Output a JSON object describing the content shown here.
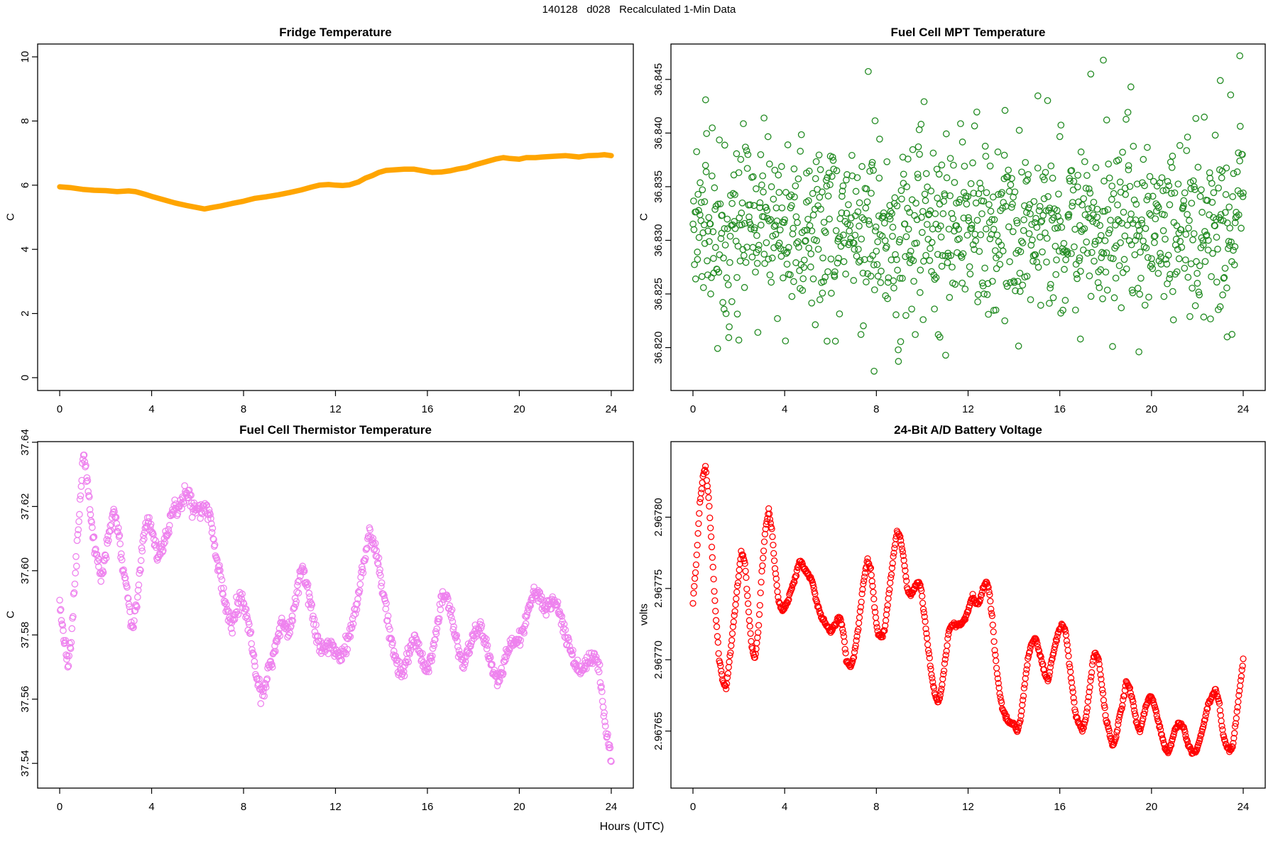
{
  "figure": {
    "title": "140128   d028   Recalculated 1-Min Data",
    "xlabel": "Hours (UTC)",
    "background": "#ffffff",
    "text_color": "#000000"
  },
  "chart_data": [
    {
      "type": "line",
      "title": "Fridge Temperature",
      "ylabel": "C",
      "color": "#FFA500",
      "line_width": 7.5,
      "xlim": [
        -0.96,
        24.96
      ],
      "ylim": [
        -0.4,
        10.4
      ],
      "xtick_values": [
        0,
        4,
        8,
        12,
        16,
        20,
        24
      ],
      "xtick_labels": [
        "0",
        "4",
        "8",
        "12",
        "16",
        "20",
        "24"
      ],
      "ytick_values": [
        0,
        2,
        4,
        6,
        8,
        10
      ],
      "ytick_labels": [
        "0",
        "2",
        "4",
        "6",
        "8",
        "10"
      ],
      "anchors": {
        "x": [
          0,
          0.5,
          1,
          1.5,
          2,
          2.5,
          3,
          3.3,
          3.7,
          4,
          4.5,
          5,
          5.5,
          6,
          6.3,
          6.6,
          7,
          7.5,
          8,
          8.5,
          9,
          9.5,
          10,
          10.5,
          11,
          11.3,
          11.7,
          12,
          12.3,
          12.6,
          13,
          13.3,
          13.6,
          13.9,
          14.2,
          14.6,
          15,
          15.4,
          15.8,
          16.2,
          16.6,
          17,
          17.3,
          17.7,
          18,
          18.5,
          19,
          19.3,
          19.6,
          20,
          20.3,
          20.7,
          21,
          21.5,
          22,
          22.3,
          22.6,
          23,
          23.4,
          23.7,
          24
        ],
        "y": [
          5.95,
          5.92,
          5.87,
          5.84,
          5.83,
          5.8,
          5.82,
          5.8,
          5.72,
          5.65,
          5.55,
          5.45,
          5.37,
          5.3,
          5.26,
          5.3,
          5.35,
          5.43,
          5.5,
          5.59,
          5.64,
          5.7,
          5.77,
          5.85,
          5.95,
          6.0,
          6.02,
          6.0,
          5.99,
          6.01,
          6.1,
          6.22,
          6.3,
          6.4,
          6.46,
          6.48,
          6.5,
          6.5,
          6.45,
          6.4,
          6.41,
          6.45,
          6.5,
          6.55,
          6.62,
          6.72,
          6.82,
          6.86,
          6.83,
          6.81,
          6.86,
          6.86,
          6.88,
          6.9,
          6.92,
          6.9,
          6.88,
          6.92,
          6.93,
          6.95,
          6.92
        ]
      }
    },
    {
      "type": "scatter-cloud",
      "title": "Fuel Cell MPT Temperature",
      "ylabel": "C",
      "color": "#228B22",
      "marker_radius": 4.2,
      "marker_stroke_width": 1.3,
      "xlim": [
        -0.96,
        24.96
      ],
      "ylim": [
        36.816,
        36.8483
      ],
      "xtick_values": [
        0,
        4,
        8,
        12,
        16,
        20,
        24
      ],
      "xtick_labels": [
        "0",
        "4",
        "8",
        "12",
        "16",
        "20",
        "24"
      ],
      "ytick_values": [
        36.82,
        36.825,
        36.83,
        36.835,
        36.84,
        36.845
      ],
      "ytick_labels": [
        "36.820",
        "36.825",
        "36.830",
        "36.835",
        "36.840",
        "36.845"
      ],
      "cloud": {
        "count": 1050,
        "seed": 20140128,
        "y_mean": 36.8311,
        "y_sd": 0.0042,
        "y_min": 36.8172,
        "y_max": 36.8472,
        "late_start": 21,
        "late_mean_slope": 0.00035,
        "late_sd_slope": 0.0003
      },
      "outliers": [
        [
          0.55,
          36.8431
        ],
        [
          2.0,
          36.8207
        ],
        [
          3.1,
          36.8414
        ],
        [
          5.85,
          36.8206
        ],
        [
          7.9,
          36.8178
        ],
        [
          10.7,
          36.8212
        ],
        [
          13.6,
          36.8225
        ],
        [
          16.9,
          36.8208
        ],
        [
          17.35,
          36.8455
        ],
        [
          17.9,
          36.8468
        ],
        [
          19.1,
          36.8443
        ],
        [
          19.45,
          36.8196
        ],
        [
          23.0,
          36.8449
        ],
        [
          23.3,
          36.821
        ],
        [
          23.85,
          36.8472
        ]
      ]
    },
    {
      "type": "scatter-path",
      "title": "Fuel Cell Thermistor Temperature",
      "ylabel": "C",
      "color": "#EE82EE",
      "marker_radius": 4.2,
      "marker_stroke_width": 1.3,
      "count": 950,
      "seed": 140128,
      "noise_sd": 0.0013,
      "xlim": [
        -0.96,
        24.96
      ],
      "ylim": [
        37.5323,
        37.6402
      ],
      "xtick_values": [
        0,
        4,
        8,
        12,
        16,
        20,
        24
      ],
      "xtick_labels": [
        "0",
        "4",
        "8",
        "12",
        "16",
        "20",
        "24"
      ],
      "ytick_values": [
        37.54,
        37.56,
        37.58,
        37.6,
        37.62,
        37.64
      ],
      "ytick_labels": [
        "37.54",
        "37.56",
        "37.58",
        "37.60",
        "37.62",
        "37.64"
      ],
      "anchors": {
        "x": [
          0,
          0.1,
          0.2,
          0.35,
          0.5,
          0.65,
          0.8,
          0.95,
          1.05,
          1.2,
          1.35,
          1.5,
          1.65,
          1.8,
          1.95,
          2.1,
          2.25,
          2.4,
          2.55,
          2.7,
          2.85,
          3.0,
          3.1,
          3.2,
          3.35,
          3.5,
          3.65,
          3.8,
          3.95,
          4.1,
          4.25,
          4.4,
          4.55,
          4.7,
          4.85,
          5.0,
          5.2,
          5.4,
          5.6,
          5.75,
          5.9,
          6.1,
          6.3,
          6.5,
          6.65,
          6.8,
          7.0,
          7.2,
          7.4,
          7.55,
          7.7,
          7.85,
          8.0,
          8.15,
          8.3,
          8.45,
          8.6,
          8.75,
          8.9,
          9.05,
          9.2,
          9.35,
          9.5,
          9.65,
          9.8,
          9.95,
          10.1,
          10.25,
          10.4,
          10.55,
          10.7,
          10.85,
          11.0,
          11.15,
          11.3,
          11.5,
          11.7,
          11.9,
          12.1,
          12.3,
          12.5,
          12.7,
          12.9,
          13.1,
          13.3,
          13.5,
          13.65,
          13.8,
          14.0,
          14.2,
          14.4,
          14.6,
          14.8,
          15.0,
          15.2,
          15.4,
          15.6,
          15.8,
          16.0,
          16.2,
          16.4,
          16.6,
          16.75,
          16.9,
          17.1,
          17.3,
          17.5,
          17.7,
          17.9,
          18.1,
          18.3,
          18.5,
          18.7,
          18.9,
          19.1,
          19.3,
          19.5,
          19.7,
          19.9,
          20.1,
          20.3,
          20.5,
          20.7,
          20.9,
          21.1,
          21.3,
          21.5,
          21.7,
          21.9,
          22.1,
          22.3,
          22.5,
          22.7,
          22.9,
          23.1,
          23.3,
          23.5,
          23.6,
          23.7,
          23.8,
          23.9,
          24.0
        ],
        "y": [
          37.59,
          37.584,
          37.578,
          37.57,
          37.578,
          37.595,
          37.612,
          37.628,
          37.637,
          37.628,
          37.617,
          37.608,
          37.604,
          37.598,
          37.602,
          37.61,
          37.616,
          37.619,
          37.612,
          37.603,
          37.598,
          37.59,
          37.583,
          37.582,
          37.59,
          37.6,
          37.61,
          37.615,
          37.613,
          37.61,
          37.605,
          37.606,
          37.61,
          37.612,
          37.617,
          37.618,
          37.62,
          37.622,
          37.625,
          37.62,
          37.618,
          37.619,
          37.62,
          37.618,
          37.612,
          37.605,
          37.598,
          37.59,
          37.585,
          37.584,
          37.588,
          37.592,
          37.59,
          37.585,
          37.58,
          37.572,
          37.565,
          37.562,
          37.562,
          37.567,
          37.572,
          37.576,
          37.58,
          37.582,
          37.582,
          37.58,
          37.584,
          37.59,
          37.597,
          37.6,
          37.597,
          37.592,
          37.585,
          37.58,
          37.576,
          37.575,
          37.577,
          37.576,
          37.574,
          37.573,
          37.578,
          37.582,
          37.588,
          37.597,
          37.605,
          37.612,
          37.608,
          37.604,
          37.596,
          37.588,
          37.58,
          37.573,
          37.568,
          37.57,
          37.575,
          37.578,
          37.576,
          37.572,
          37.569,
          37.574,
          37.582,
          37.59,
          37.593,
          37.59,
          37.584,
          37.577,
          37.571,
          37.574,
          37.578,
          37.581,
          37.582,
          37.578,
          37.573,
          37.568,
          37.566,
          37.57,
          37.575,
          37.578,
          37.578,
          37.58,
          37.585,
          37.59,
          37.593,
          37.591,
          37.589,
          37.59,
          37.591,
          37.588,
          37.583,
          37.578,
          37.573,
          37.57,
          37.568,
          37.57,
          37.572,
          37.574,
          37.568,
          37.56,
          37.553,
          37.548,
          37.545,
          37.542
        ]
      }
    },
    {
      "type": "scatter-path",
      "title": "24-Bit A/D Battery Voltage",
      "ylabel": "volts",
      "color": "#FF0000",
      "marker_radius": 4.0,
      "marker_stroke_width": 1.3,
      "count": 880,
      "seed": 28,
      "noise_sd": 7e-07,
      "xlim": [
        -0.96,
        24.96
      ],
      "ylim": [
        2.96761,
        2.967853
      ],
      "xtick_values": [
        0,
        4,
        8,
        12,
        16,
        20,
        24
      ],
      "xtick_labels": [
        "0",
        "4",
        "8",
        "12",
        "16",
        "20",
        "24"
      ],
      "ytick_values": [
        2.96765,
        2.9677,
        2.96775,
        2.9678
      ],
      "ytick_labels": [
        "2.96765",
        "2.96770",
        "2.96775",
        "2.96780"
      ],
      "anchors": {
        "x": [
          0,
          0.15,
          0.3,
          0.45,
          0.55,
          0.7,
          0.85,
          1.0,
          1.15,
          1.3,
          1.45,
          1.6,
          1.8,
          2.0,
          2.1,
          2.25,
          2.4,
          2.55,
          2.7,
          2.85,
          3.0,
          3.15,
          3.3,
          3.45,
          3.6,
          3.75,
          3.9,
          4.1,
          4.3,
          4.5,
          4.65,
          4.8,
          5.0,
          5.2,
          5.4,
          5.6,
          5.8,
          6.0,
          6.2,
          6.4,
          6.55,
          6.7,
          6.85,
          7.0,
          7.2,
          7.4,
          7.6,
          7.75,
          7.9,
          8.05,
          8.2,
          8.35,
          8.5,
          8.65,
          8.8,
          8.9,
          9.05,
          9.2,
          9.35,
          9.5,
          9.65,
          9.8,
          9.95,
          10.1,
          10.25,
          10.4,
          10.55,
          10.7,
          10.85,
          11.0,
          11.15,
          11.3,
          11.5,
          11.7,
          11.9,
          12.1,
          12.2,
          12.35,
          12.5,
          12.65,
          12.8,
          12.9,
          13.05,
          13.2,
          13.35,
          13.5,
          13.65,
          13.8,
          14.0,
          14.15,
          14.3,
          14.45,
          14.6,
          14.75,
          14.9,
          15.05,
          15.2,
          15.35,
          15.5,
          15.65,
          15.8,
          15.95,
          16.1,
          16.25,
          16.4,
          16.55,
          16.7,
          16.85,
          17.0,
          17.15,
          17.3,
          17.45,
          17.55,
          17.7,
          17.85,
          18.0,
          18.15,
          18.3,
          18.45,
          18.6,
          18.75,
          18.9,
          19.05,
          19.2,
          19.35,
          19.5,
          19.65,
          19.8,
          19.95,
          20.1,
          20.25,
          20.4,
          20.55,
          20.7,
          20.85,
          21.0,
          21.15,
          21.3,
          21.45,
          21.6,
          21.75,
          21.9,
          22.05,
          22.2,
          22.35,
          22.5,
          22.65,
          22.8,
          22.95,
          23.1,
          23.25,
          23.4,
          23.55,
          23.7,
          23.85,
          24.0
        ],
        "y": [
          2.96774,
          2.96777,
          2.96781,
          2.96783,
          2.967835,
          2.96781,
          2.96777,
          2.96773,
          2.9677,
          2.967685,
          2.96768,
          2.9677,
          2.96773,
          2.96776,
          2.967775,
          2.96777,
          2.96774,
          2.96771,
          2.9677,
          2.96772,
          2.96776,
          2.96779,
          2.967805,
          2.96779,
          2.96776,
          2.96774,
          2.967735,
          2.96774,
          2.96775,
          2.96776,
          2.96777,
          2.967765,
          2.96776,
          2.967755,
          2.96774,
          2.96773,
          2.967725,
          2.96772,
          2.967725,
          2.96773,
          2.96772,
          2.9677,
          2.967695,
          2.9677,
          2.96772,
          2.96775,
          2.96777,
          2.967765,
          2.96774,
          2.96772,
          2.967715,
          2.96772,
          2.96774,
          2.96776,
          2.96778,
          2.96779,
          2.967785,
          2.96777,
          2.96775,
          2.967745,
          2.96775,
          2.967755,
          2.96775,
          2.96773,
          2.96771,
          2.96769,
          2.967675,
          2.96767,
          2.96768,
          2.9677,
          2.96772,
          2.967725,
          2.967725,
          2.967725,
          2.96773,
          2.96774,
          2.967745,
          2.96774,
          2.96774,
          2.96775,
          2.967755,
          2.96775,
          2.96773,
          2.9677,
          2.96768,
          2.967665,
          2.96766,
          2.967655,
          2.967655,
          2.96765,
          2.96766,
          2.96768,
          2.9677,
          2.96771,
          2.967715,
          2.96771,
          2.9677,
          2.96769,
          2.967685,
          2.9677,
          2.96771,
          2.96772,
          2.967725,
          2.96772,
          2.9677,
          2.96768,
          2.96766,
          2.967655,
          2.96765,
          2.96766,
          2.96768,
          2.9677,
          2.967705,
          2.9677,
          2.96768,
          2.96766,
          2.96765,
          2.96764,
          2.967645,
          2.96766,
          2.96767,
          2.967685,
          2.96768,
          2.96767,
          2.967655,
          2.96765,
          2.96766,
          2.96767,
          2.967675,
          2.96767,
          2.96766,
          2.96765,
          2.96764,
          2.967635,
          2.96764,
          2.96765,
          2.967655,
          2.967655,
          2.96765,
          2.96764,
          2.967635,
          2.967635,
          2.96764,
          2.96765,
          2.96766,
          2.96767,
          2.967675,
          2.96768,
          2.96767,
          2.96765,
          2.96764,
          2.967635,
          2.96764,
          2.96766,
          2.96768,
          2.9677
        ]
      }
    }
  ]
}
